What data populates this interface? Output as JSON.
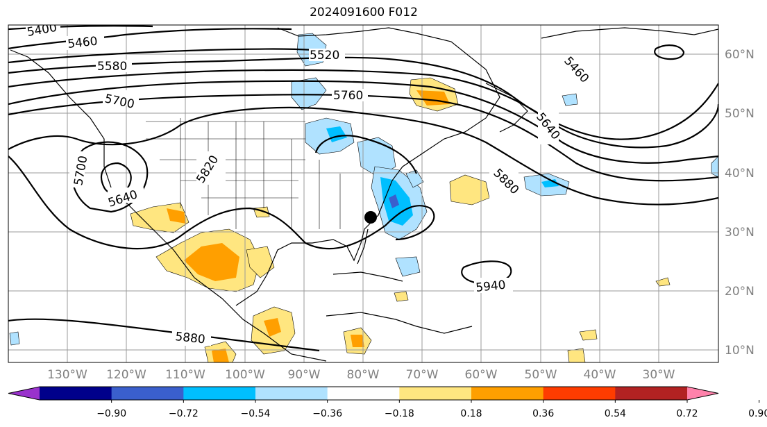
{
  "title": "2024091600 F012",
  "map": {
    "lon_labels": [
      "130°W",
      "120°W",
      "110°W",
      "100°W",
      "90°W",
      "80°W",
      "70°W",
      "60°W",
      "50°W",
      "40°W",
      "30°W"
    ],
    "lat_labels": [
      "60°N",
      "50°N",
      "40°N",
      "30°N",
      "20°N",
      "10°N"
    ],
    "contour_labels": [
      "5400",
      "5460",
      "5520",
      "5580",
      "5700",
      "5760",
      "5640",
      "5460",
      "5640",
      "5700",
      "5640",
      "5820",
      "5880",
      "5940",
      "5880"
    ],
    "marker": "storm-center-dot"
  },
  "colorbar": {
    "ticks": [
      "−0.90",
      "−0.72",
      "−0.54",
      "−0.36",
      "−0.18",
      "0.18",
      "0.36",
      "0.54",
      "0.72",
      "0.90"
    ],
    "colors": [
      "#9932CC",
      "#00008B",
      "#3A5FCD",
      "#00BFFF",
      "#B0E2FF",
      "#FFFFFF",
      "#FFE680",
      "#FF9F00",
      "#FF3C00",
      "#B22222",
      "#FF82AB"
    ]
  }
}
